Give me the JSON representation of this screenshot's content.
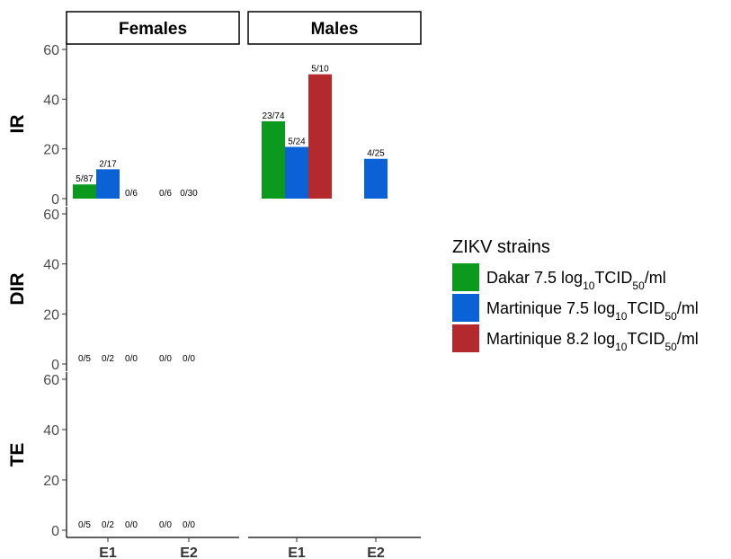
{
  "chart_data": {
    "type": "bar",
    "facet_columns": [
      "Females",
      "Males"
    ],
    "facet_rows": [
      "IR",
      "DIR",
      "TE"
    ],
    "categories": [
      "E1",
      "E2"
    ],
    "ylim": [
      0,
      60
    ],
    "yticks": [
      0,
      20,
      40,
      60
    ],
    "legend": {
      "title": "ZIKV strains",
      "position": "right",
      "entries": [
        {
          "name": "Dakar 7.5 log10TCID50/ml",
          "base": "Dakar 7.5 log",
          "sub1": "10",
          "mid": "TCID",
          "sub2": "50",
          "tail": "/ml",
          "color": "#0b9a1e"
        },
        {
          "name": "Martinique 7.5 log10TCID50/ml",
          "base": "Martinique 7.5 log",
          "sub1": "10",
          "mid": "TCID",
          "sub2": "50",
          "tail": "/ml",
          "color": "#0b62d6"
        },
        {
          "name": "Martinique 8.2 log10TCID50/ml",
          "base": "Martinique 8.2 log",
          "sub1": "10",
          "mid": "TCID",
          "sub2": "50",
          "tail": "/ml",
          "color": "#b3292d"
        }
      ]
    },
    "panels": [
      {
        "col": 0,
        "row": 0,
        "bars": [
          {
            "category": "E1",
            "series": 0,
            "value": 5.7,
            "label": "5/87"
          },
          {
            "category": "E1",
            "series": 1,
            "value": 11.8,
            "label": "2/17"
          },
          {
            "category": "E1",
            "series": 2,
            "value": 0,
            "label": "0/6"
          },
          {
            "category": "E2",
            "series": 0,
            "value": 0,
            "label": "0/6"
          },
          {
            "category": "E2",
            "series": 1,
            "value": 0,
            "label": "0/30"
          }
        ]
      },
      {
        "col": 1,
        "row": 0,
        "bars": [
          {
            "category": "E1",
            "series": 0,
            "value": 31.1,
            "label": "23/74"
          },
          {
            "category": "E1",
            "series": 1,
            "value": 20.8,
            "label": "5/24"
          },
          {
            "category": "E1",
            "series": 2,
            "value": 50,
            "label": "5/10"
          },
          {
            "category": "E2",
            "series": 1,
            "value": 16,
            "label": "4/25"
          }
        ]
      },
      {
        "col": 0,
        "row": 1,
        "bars": [
          {
            "category": "E1",
            "series": 0,
            "value": 0,
            "label": "0/5"
          },
          {
            "category": "E1",
            "series": 1,
            "value": 0,
            "label": "0/2"
          },
          {
            "category": "E1",
            "series": 2,
            "value": 0,
            "label": "0/0"
          },
          {
            "category": "E2",
            "series": 0,
            "value": 0,
            "label": "0/0"
          },
          {
            "category": "E2",
            "series": 1,
            "value": 0,
            "label": "0/0"
          }
        ]
      },
      {
        "col": 1,
        "row": 1,
        "bars": []
      },
      {
        "col": 0,
        "row": 2,
        "bars": [
          {
            "category": "E1",
            "series": 0,
            "value": 0,
            "label": "0/5"
          },
          {
            "category": "E1",
            "series": 1,
            "value": 0,
            "label": "0/2"
          },
          {
            "category": "E1",
            "series": 2,
            "value": 0,
            "label": "0/0"
          },
          {
            "category": "E2",
            "series": 0,
            "value": 0,
            "label": "0/0"
          },
          {
            "category": "E2",
            "series": 1,
            "value": 0,
            "label": "0/0"
          }
        ]
      },
      {
        "col": 1,
        "row": 2,
        "bars": []
      }
    ]
  }
}
